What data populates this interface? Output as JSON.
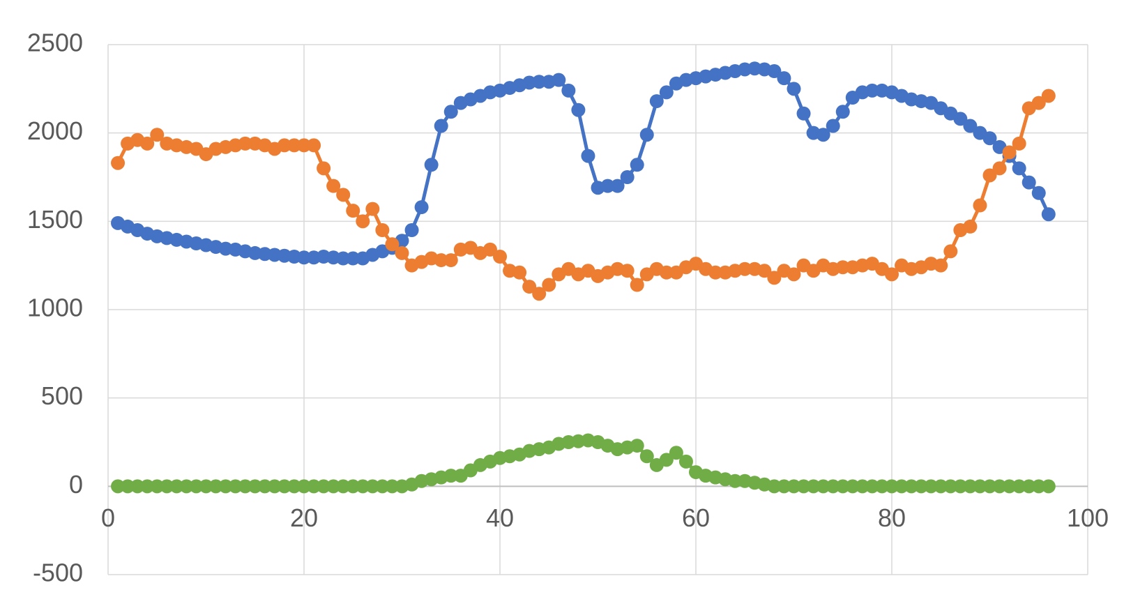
{
  "chart_data": {
    "type": "scatter-line",
    "x": [
      1,
      2,
      3,
      4,
      5,
      6,
      7,
      8,
      9,
      10,
      11,
      12,
      13,
      14,
      15,
      16,
      17,
      18,
      19,
      20,
      21,
      22,
      23,
      24,
      25,
      26,
      27,
      28,
      29,
      30,
      31,
      32,
      33,
      34,
      35,
      36,
      37,
      38,
      39,
      40,
      41,
      42,
      43,
      44,
      45,
      46,
      47,
      48,
      49,
      50,
      51,
      52,
      53,
      54,
      55,
      56,
      57,
      58,
      59,
      60,
      61,
      62,
      63,
      64,
      65,
      66,
      67,
      68,
      69,
      70,
      71,
      72,
      73,
      74,
      75,
      76,
      77,
      78,
      79,
      80,
      81,
      82,
      83,
      84,
      85,
      86,
      87,
      88,
      89,
      90,
      91,
      92,
      93,
      94,
      95,
      96
    ],
    "series": [
      {
        "color": "#4472c4",
        "values": [
          1490,
          1470,
          1450,
          1430,
          1415,
          1405,
          1395,
          1385,
          1375,
          1365,
          1355,
          1345,
          1340,
          1330,
          1320,
          1315,
          1310,
          1305,
          1300,
          1295,
          1295,
          1300,
          1295,
          1290,
          1290,
          1290,
          1310,
          1330,
          1350,
          1390,
          1450,
          1580,
          1820,
          2040,
          2120,
          2170,
          2190,
          2210,
          2230,
          2240,
          2255,
          2270,
          2285,
          2290,
          2290,
          2300,
          2240,
          2130,
          1870,
          1690,
          1700,
          1700,
          1750,
          1820,
          1990,
          2180,
          2230,
          2280,
          2300,
          2310,
          2320,
          2330,
          2340,
          2350,
          2360,
          2365,
          2360,
          2350,
          2310,
          2250,
          2110,
          2000,
          1990,
          2040,
          2120,
          2200,
          2230,
          2240,
          2240,
          2230,
          2210,
          2190,
          2180,
          2170,
          2140,
          2110,
          2080,
          2040,
          2000,
          1970,
          1920,
          1870,
          1800,
          1720,
          1660,
          1540
        ]
      },
      {
        "color": "#ed7d31",
        "values": [
          1830,
          1940,
          1960,
          1940,
          1990,
          1940,
          1930,
          1920,
          1910,
          1880,
          1910,
          1920,
          1930,
          1940,
          1940,
          1930,
          1910,
          1930,
          1930,
          1930,
          1930,
          1800,
          1700,
          1650,
          1560,
          1500,
          1570,
          1450,
          1370,
          1320,
          1250,
          1270,
          1290,
          1280,
          1280,
          1340,
          1350,
          1320,
          1340,
          1300,
          1220,
          1210,
          1130,
          1090,
          1140,
          1200,
          1230,
          1200,
          1220,
          1190,
          1210,
          1230,
          1220,
          1140,
          1200,
          1230,
          1210,
          1210,
          1240,
          1260,
          1230,
          1210,
          1210,
          1220,
          1230,
          1230,
          1220,
          1180,
          1220,
          1200,
          1250,
          1220,
          1250,
          1230,
          1240,
          1240,
          1250,
          1260,
          1230,
          1200,
          1250,
          1230,
          1240,
          1260,
          1250,
          1330,
          1450,
          1470,
          1590,
          1760,
          1800,
          1890,
          1940,
          2140,
          2170,
          2210
        ]
      },
      {
        "color": "#70ad47",
        "values": [
          0,
          0,
          0,
          0,
          0,
          0,
          0,
          0,
          0,
          0,
          0,
          0,
          0,
          0,
          0,
          0,
          0,
          0,
          0,
          0,
          0,
          0,
          0,
          0,
          0,
          0,
          0,
          0,
          0,
          0,
          10,
          30,
          40,
          50,
          60,
          60,
          90,
          120,
          140,
          160,
          170,
          180,
          200,
          210,
          220,
          240,
          250,
          255,
          260,
          250,
          230,
          210,
          220,
          230,
          170,
          120,
          150,
          190,
          140,
          80,
          60,
          50,
          40,
          30,
          30,
          20,
          10,
          0,
          0,
          0,
          0,
          0,
          0,
          0,
          0,
          0,
          0,
          0,
          0,
          0,
          0,
          0,
          0,
          0,
          0,
          0,
          0,
          0,
          0,
          0,
          0,
          0,
          0,
          0,
          0,
          0
        ]
      }
    ],
    "xlim": [
      0,
      100
    ],
    "xticks": [
      0,
      20,
      40,
      60,
      80,
      100
    ],
    "ylim": [
      -500,
      2500
    ],
    "yticks": [
      -500,
      0,
      500,
      1000,
      1500,
      2000,
      2500
    ],
    "grid": true
  }
}
